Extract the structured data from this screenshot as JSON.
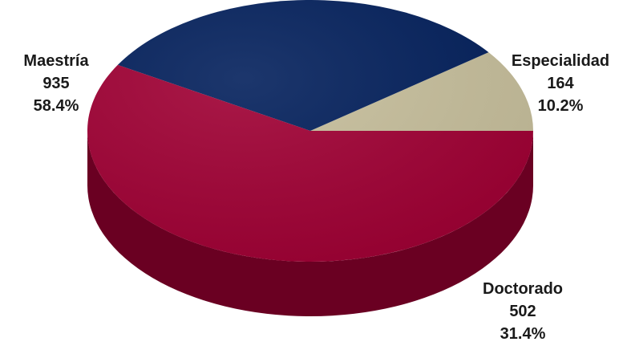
{
  "chart_data": {
    "type": "pie",
    "title": "",
    "legend": "none",
    "slices": [
      {
        "label": "Especialidad",
        "value": 164,
        "percent_label": "10.2%",
        "color": "#c7bf9c",
        "side_color": "#8f875f"
      },
      {
        "label": "Doctorado",
        "value": 502,
        "percent_label": "31.4%",
        "color": "#03205c",
        "side_color": "#021438"
      },
      {
        "label": "Maestría",
        "value": 935,
        "percent_label": "58.4%",
        "color": "#a00034",
        "side_color": "#6a0022"
      }
    ]
  }
}
